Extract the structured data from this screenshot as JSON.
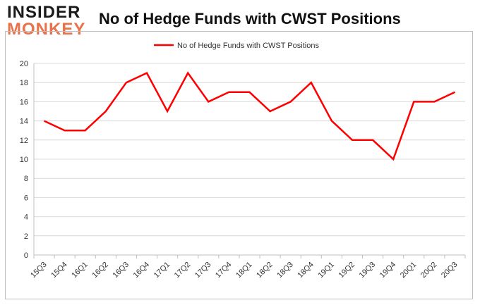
{
  "logo": {
    "line1": "INSIDER",
    "line2": "MONKEY"
  },
  "chart_data": {
    "type": "line",
    "title": "No of Hedge Funds with CWST Positions",
    "xlabel": "",
    "ylabel": "",
    "ylim": [
      0,
      20
    ],
    "yticks": [
      "0",
      "2",
      "4",
      "6",
      "8",
      "10",
      "12",
      "14",
      "16",
      "18",
      "20"
    ],
    "categories": [
      "15Q3",
      "15Q4",
      "16Q1",
      "16Q2",
      "16Q3",
      "16Q4",
      "17Q1",
      "17Q2",
      "17Q3",
      "17Q4",
      "18Q1",
      "18Q2",
      "18Q3",
      "18Q4",
      "19Q1",
      "19Q2",
      "19Q3",
      "19Q4",
      "20Q1",
      "20Q2",
      "20Q3"
    ],
    "series": [
      {
        "name": "No of Hedge Funds with CWST Positions",
        "values": [
          14,
          13,
          13,
          15,
          18,
          19,
          15,
          19,
          16,
          17,
          17,
          15,
          16,
          18,
          14,
          12,
          12,
          10,
          16,
          16,
          17
        ],
        "color": "#ff0000"
      }
    ],
    "grid": true,
    "legend": "top-center",
    "gridColor": "#d9d9d9",
    "axisColor": "#bfbfbf"
  }
}
